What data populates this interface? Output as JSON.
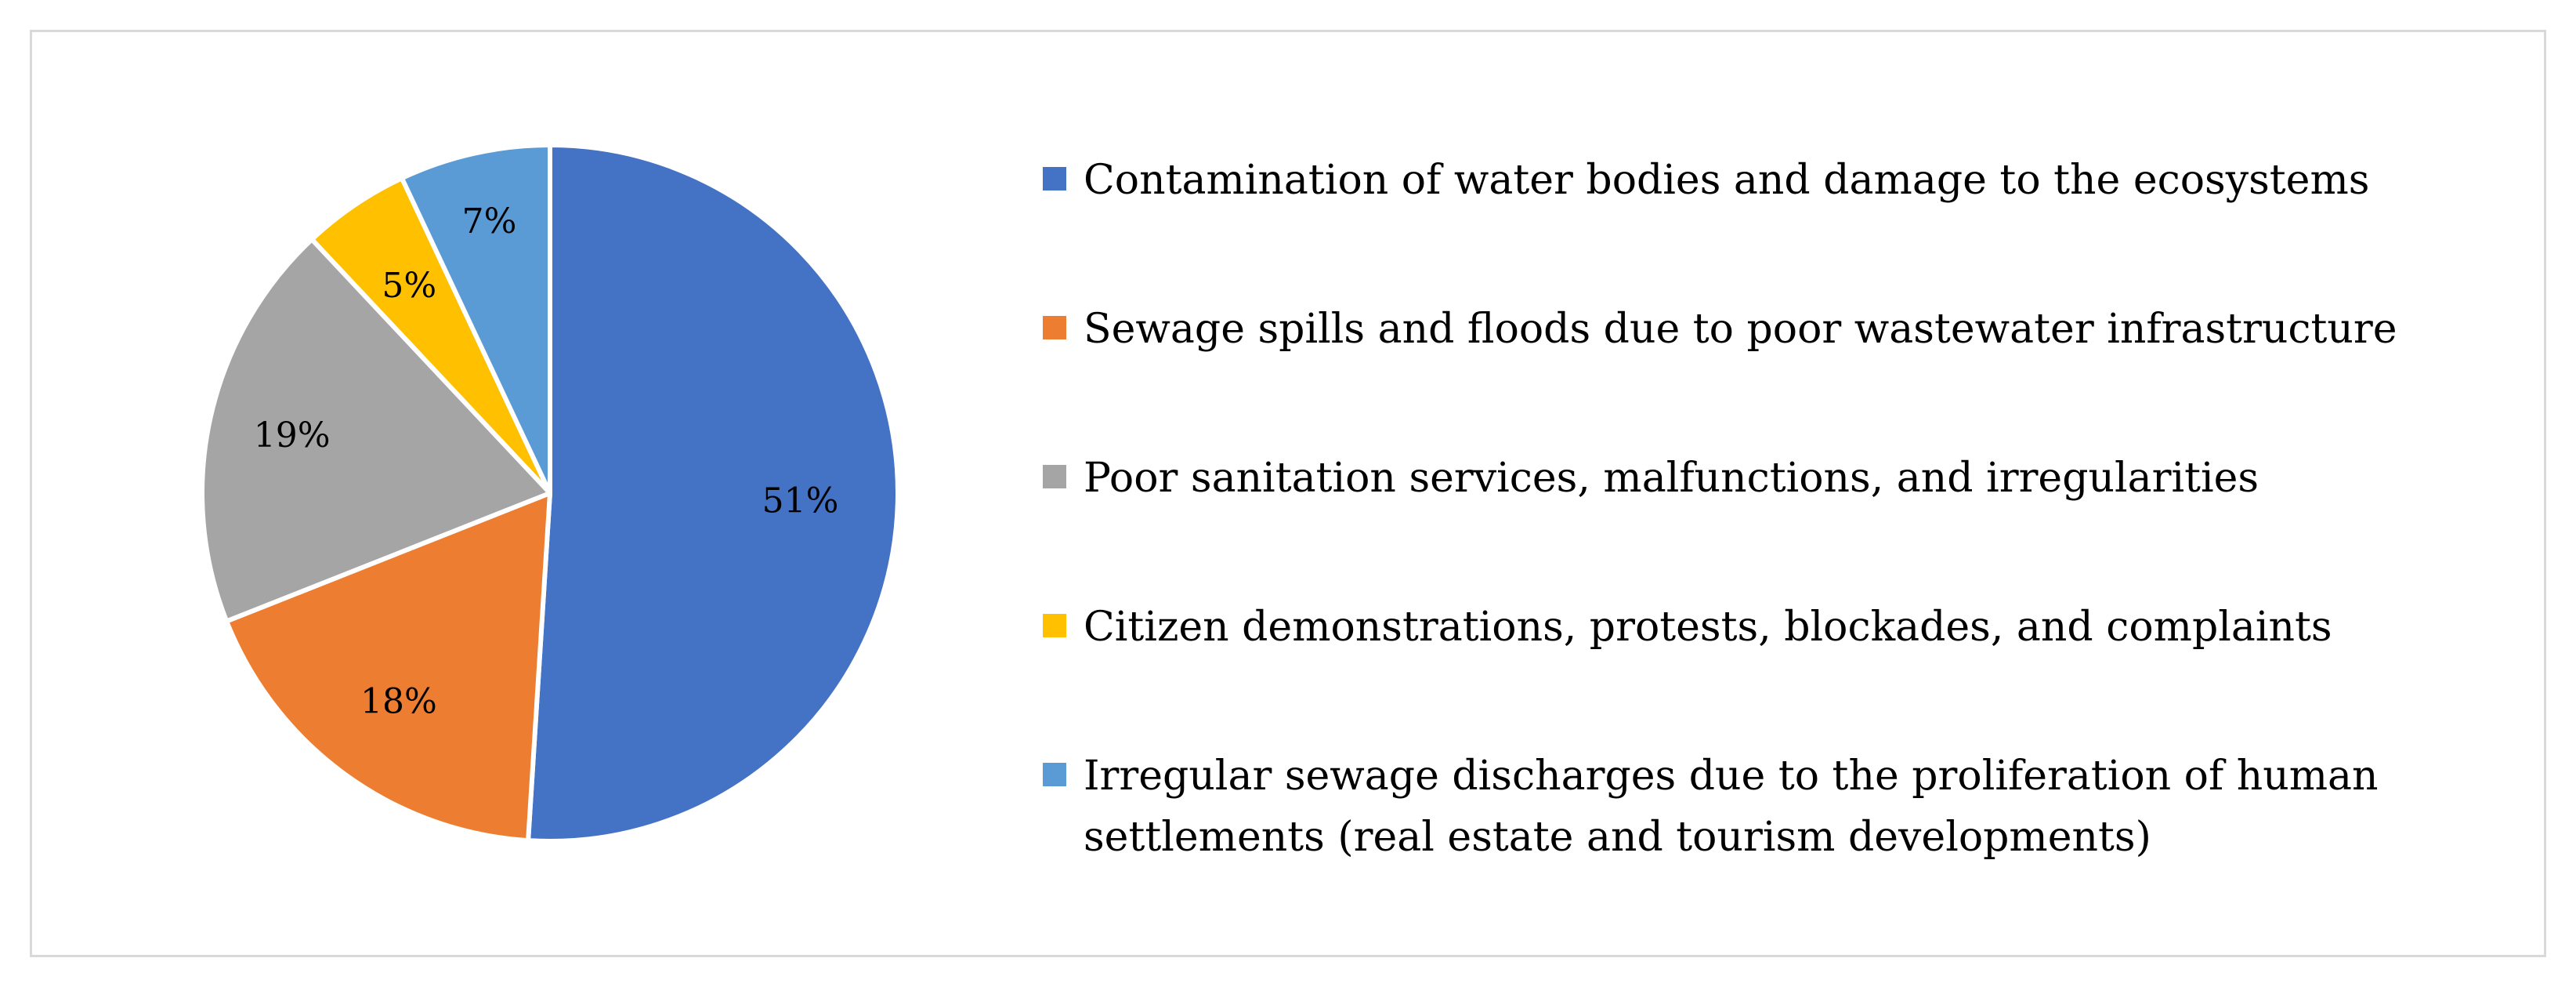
{
  "chart_data": {
    "type": "pie",
    "slices": [
      {
        "label": "Contamination of water bodies and damage to the ecosystems",
        "value": 51,
        "display": "51%",
        "color": "#4472C4"
      },
      {
        "label": "Sewage spills and floods due to poor wastewater infrastructure",
        "value": 18,
        "display": "18%",
        "color": "#ED7D31"
      },
      {
        "label": "Poor sanitation services, malfunctions, and irregularities",
        "value": 19,
        "display": "19%",
        "color": "#A5A5A5"
      },
      {
        "label": "Citizen demonstrations, protests, blockades, and complaints",
        "value": 5,
        "display": "5%",
        "color": "#FFC000"
      },
      {
        "label": "Irregular sewage discharges due to the proliferation of human settlements (real estate and tourism developments)",
        "value": 7,
        "display": "7%",
        "color": "#5B9BD5"
      }
    ],
    "start_angle": "12 o'clock",
    "direction": "clockwise",
    "legend_position": "right"
  }
}
